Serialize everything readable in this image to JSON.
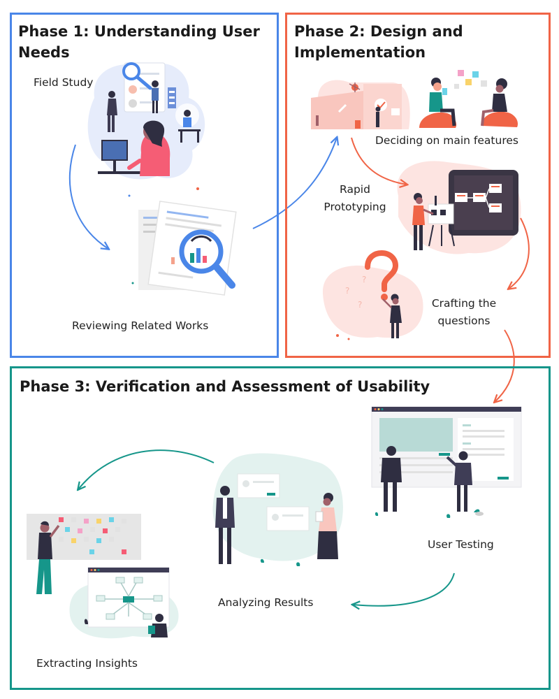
{
  "colors": {
    "phase1": "#4a86e8",
    "phase2": "#f06446",
    "phase3": "#16968a",
    "skin": "#f4a28c",
    "dark": "#2f2e41",
    "pink": "#f55d75",
    "blob_blue": "#e6ecfb",
    "blob_pink": "#fde4e1",
    "blob_teal": "#e3f2ef"
  },
  "phases": [
    {
      "title_line1": "Phase 1: Understanding User",
      "title_line2": "Needs",
      "steps": [
        {
          "label": "Field Study"
        },
        {
          "label": "Reviewing Related Works"
        }
      ]
    },
    {
      "title_line1": "Phase 2: Design and",
      "title_line2": "Implementation",
      "steps": [
        {
          "label": "Deciding on main features"
        },
        {
          "label_line1": "Rapid",
          "label_line2": "Prototyping"
        },
        {
          "label_line1": "Crafting the",
          "label_line2": "questions"
        }
      ]
    },
    {
      "title": "Phase 3: Verification and Assessment of Usability",
      "steps": [
        {
          "label": "User Testing"
        },
        {
          "label": "Analyzing Results"
        },
        {
          "label": "Extracting Insights"
        }
      ]
    }
  ],
  "icons": [
    "field-study-illustration",
    "magnifier-document-illustration",
    "meeting-room-illustration",
    "seated-people-illustration",
    "tablet-prototype-illustration",
    "question-mark-illustration",
    "user-testing-illustration",
    "analyzing-results-illustration",
    "sticky-notes-insights-illustration"
  ]
}
